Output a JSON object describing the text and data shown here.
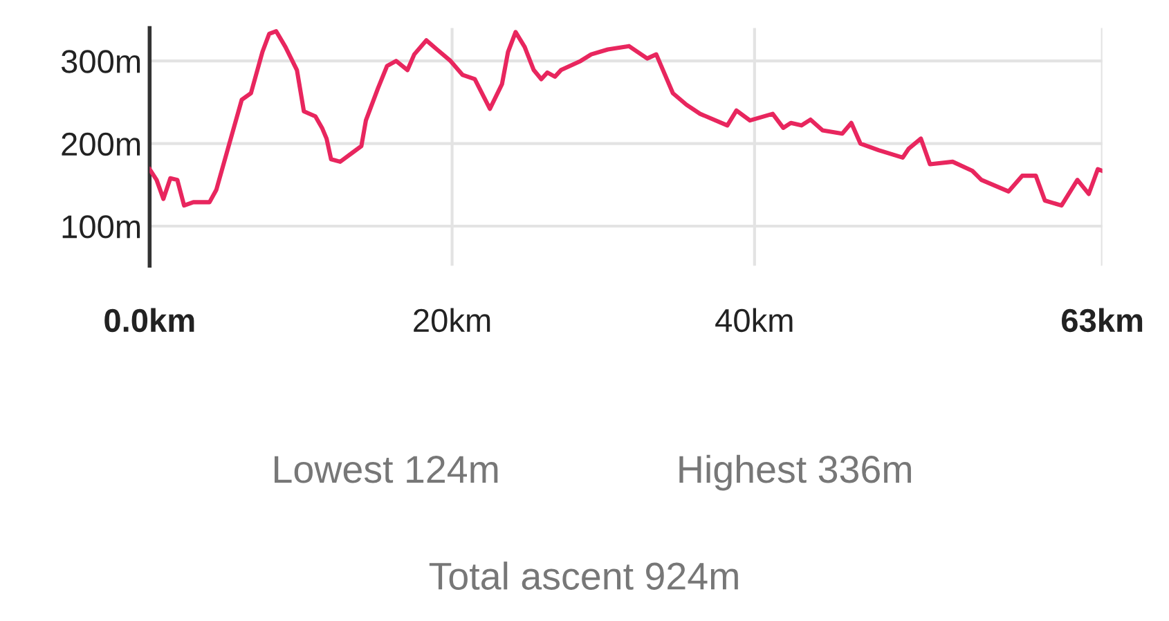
{
  "chart_data": {
    "type": "line",
    "x": [
      0,
      0.46,
      0.91,
      1.37,
      1.83,
      2.28,
      2.89,
      3.96,
      4.41,
      5.18,
      6.09,
      6.7,
      7.46,
      7.91,
      8.37,
      8.98,
      9.74,
      10.2,
      10.96,
      11.4,
      11.7,
      12.0,
      12.6,
      14.0,
      14.3,
      15.1,
      15.7,
      16.3,
      17.05,
      17.5,
      18.3,
      19.0,
      19.9,
      20.7,
      21.5,
      22.5,
      23.3,
      23.7,
      24.2,
      24.8,
      25.4,
      25.9,
      26.3,
      26.8,
      27.2,
      28.5,
      29.2,
      30.3,
      31.7,
      32.9,
      33.5,
      34.6,
      35.5,
      36.4,
      38.2,
      38.8,
      39.7,
      41.2,
      41.9,
      42.4,
      43.1,
      43.7,
      44.5,
      45.8,
      46.4,
      47.0,
      48.2,
      49.8,
      50.2,
      51.0,
      51.6,
      53.1,
      54.4,
      55.0,
      56.8,
      57.7,
      58.6,
      59.2,
      60.3,
      61.35,
      62.1,
      62.7,
      63
    ],
    "series": [
      {
        "color": "#e8265e",
        "values": [
          169,
          156,
          133,
          158,
          156,
          125,
          129,
          129,
          144,
          194,
          253,
          261,
          311,
          333,
          336,
          317,
          289,
          239,
          233,
          219,
          206,
          181,
          178,
          197,
          228,
          267,
          294,
          300,
          289,
          308,
          325,
          314,
          300,
          283,
          278,
          242,
          272,
          311,
          335,
          317,
          289,
          278,
          286,
          281,
          289,
          300,
          308,
          314,
          318,
          303,
          308,
          261,
          247,
          236,
          222,
          240,
          228,
          236,
          219,
          225,
          222,
          229,
          216,
          212,
          225,
          200,
          192,
          183,
          194,
          206,
          175,
          178,
          167,
          156,
          142,
          161,
          161,
          131,
          125,
          156,
          139,
          169,
          167
        ]
      }
    ],
    "xlim": [
      0,
      63
    ],
    "ylim": [
      52,
      340
    ],
    "xticks": [
      {
        "value": 0,
        "label": "0.0km"
      },
      {
        "value": 20,
        "label": "20km"
      },
      {
        "value": 40,
        "label": "40km"
      },
      {
        "value": 63,
        "label": "63km"
      }
    ],
    "yticks": [
      {
        "value": 100,
        "label": "100m"
      },
      {
        "value": 200,
        "label": "200m"
      },
      {
        "value": 300,
        "label": "300m"
      }
    ],
    "grid": true,
    "marker": "none",
    "line_style": "solid",
    "annotations": [
      "Lowest 124m",
      "Highest 336m",
      "Total ascent 924m"
    ]
  }
}
